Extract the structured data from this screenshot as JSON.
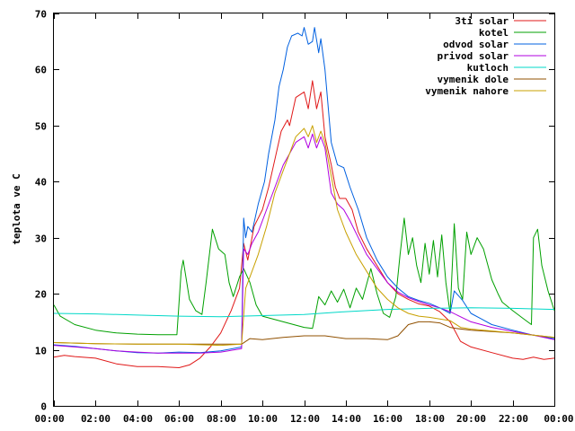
{
  "chart_data": {
    "type": "line",
    "ylabel": "teplota ve C",
    "xlim": [
      0,
      24
    ],
    "ylim": [
      0,
      70
    ],
    "x_ticks": [
      "00:00",
      "02:00",
      "04:00",
      "06:00",
      "08:00",
      "10:00",
      "12:00",
      "14:00",
      "16:00",
      "18:00",
      "20:00",
      "22:00",
      "00:00"
    ],
    "y_ticks": [
      "0",
      "10",
      "20",
      "30",
      "40",
      "50",
      "60",
      "70"
    ],
    "legend_position": "top-right",
    "grid": false,
    "series": [
      {
        "name": "3ti solar",
        "color": "#e01818",
        "points": [
          [
            0,
            8.7
          ],
          [
            0.5,
            9
          ],
          [
            1,
            8.8
          ],
          [
            2,
            8.5
          ],
          [
            3,
            7.5
          ],
          [
            4,
            7.0
          ],
          [
            5,
            7.0
          ],
          [
            6,
            6.8
          ],
          [
            6.5,
            7.3
          ],
          [
            7,
            8.5
          ],
          [
            7.5,
            10.5
          ],
          [
            8,
            13
          ],
          [
            8.5,
            17
          ],
          [
            8.9,
            21
          ],
          [
            9.1,
            29
          ],
          [
            9.3,
            26
          ],
          [
            9.6,
            32
          ],
          [
            10,
            35
          ],
          [
            10.3,
            39
          ],
          [
            10.6,
            44
          ],
          [
            10.9,
            49
          ],
          [
            11.2,
            51
          ],
          [
            11.3,
            50
          ],
          [
            11.6,
            55
          ],
          [
            12,
            56
          ],
          [
            12.2,
            53
          ],
          [
            12.4,
            58
          ],
          [
            12.6,
            53
          ],
          [
            12.8,
            56
          ],
          [
            13.0,
            48
          ],
          [
            13.3,
            43
          ],
          [
            13.5,
            39
          ],
          [
            13.7,
            37
          ],
          [
            14.0,
            37
          ],
          [
            14.3,
            35
          ],
          [
            14.6,
            31
          ],
          [
            15,
            28
          ],
          [
            15.5,
            25
          ],
          [
            16,
            22
          ],
          [
            16.5,
            20
          ],
          [
            17,
            19
          ],
          [
            17.5,
            18.2
          ],
          [
            18,
            17.8
          ],
          [
            18.5,
            16.8
          ],
          [
            19,
            15
          ],
          [
            19.5,
            11.5
          ],
          [
            20,
            10.5
          ],
          [
            21,
            9.5
          ],
          [
            22,
            8.5
          ],
          [
            22.5,
            8.3
          ],
          [
            23,
            8.7
          ],
          [
            23.5,
            8.3
          ],
          [
            24,
            8.5
          ]
        ]
      },
      {
        "name": "kotel",
        "color": "#00a000",
        "points": [
          [
            0,
            18
          ],
          [
            0.3,
            16
          ],
          [
            1,
            14.5
          ],
          [
            2,
            13.5
          ],
          [
            3,
            13
          ],
          [
            4,
            12.8
          ],
          [
            5,
            12.7
          ],
          [
            5.9,
            12.7
          ],
          [
            6.1,
            24
          ],
          [
            6.2,
            26
          ],
          [
            6.5,
            19
          ],
          [
            6.8,
            17
          ],
          [
            7.1,
            16.3
          ],
          [
            7.3,
            22
          ],
          [
            7.6,
            31.5
          ],
          [
            7.9,
            28
          ],
          [
            8.2,
            27
          ],
          [
            8.4,
            22
          ],
          [
            8.6,
            19.5
          ],
          [
            8.9,
            23
          ],
          [
            9.1,
            24.5
          ],
          [
            9.4,
            22
          ],
          [
            9.7,
            18
          ],
          [
            10,
            16
          ],
          [
            11,
            15
          ],
          [
            12,
            14
          ],
          [
            12.4,
            13.8
          ],
          [
            12.5,
            15.6
          ],
          [
            12.7,
            19.5
          ],
          [
            13,
            18
          ],
          [
            13.3,
            20.5
          ],
          [
            13.6,
            18.5
          ],
          [
            13.9,
            20.8
          ],
          [
            14.2,
            17.5
          ],
          [
            14.5,
            21
          ],
          [
            14.8,
            19
          ],
          [
            15.2,
            24.5
          ],
          [
            15.5,
            20
          ],
          [
            15.8,
            16.5
          ],
          [
            16.1,
            15.8
          ],
          [
            16.4,
            19.5
          ],
          [
            16.6,
            27
          ],
          [
            16.8,
            33.5
          ],
          [
            17.0,
            27
          ],
          [
            17.2,
            30
          ],
          [
            17.4,
            25
          ],
          [
            17.6,
            22
          ],
          [
            17.8,
            29
          ],
          [
            18.0,
            23.5
          ],
          [
            18.2,
            29.5
          ],
          [
            18.4,
            23
          ],
          [
            18.6,
            30.5
          ],
          [
            18.8,
            22
          ],
          [
            19.0,
            16.5
          ],
          [
            19.2,
            32.5
          ],
          [
            19.4,
            21
          ],
          [
            19.6,
            19
          ],
          [
            19.8,
            31
          ],
          [
            20.0,
            27
          ],
          [
            20.3,
            30
          ],
          [
            20.6,
            28
          ],
          [
            21,
            22.5
          ],
          [
            21.3,
            20
          ],
          [
            21.5,
            18.5
          ],
          [
            22,
            17
          ],
          [
            22.5,
            15.6
          ],
          [
            22.9,
            14.5
          ],
          [
            23.0,
            30
          ],
          [
            23.2,
            31.5
          ],
          [
            23.4,
            25
          ],
          [
            23.7,
            20.5
          ],
          [
            24,
            17
          ]
        ]
      },
      {
        "name": "odvod solar",
        "color": "#0060e0",
        "points": [
          [
            0,
            10.9
          ],
          [
            1,
            10.6
          ],
          [
            2,
            10.2
          ],
          [
            3,
            9.8
          ],
          [
            4,
            9.5
          ],
          [
            5,
            9.4
          ],
          [
            6,
            9.6
          ],
          [
            7,
            9.5
          ],
          [
            8,
            9.8
          ],
          [
            9,
            10.5
          ],
          [
            9.1,
            33.5
          ],
          [
            9.2,
            30
          ],
          [
            9.3,
            32
          ],
          [
            9.5,
            31
          ],
          [
            9.8,
            36
          ],
          [
            10.1,
            40
          ],
          [
            10.3,
            45
          ],
          [
            10.6,
            51
          ],
          [
            10.8,
            57
          ],
          [
            11.0,
            60
          ],
          [
            11.2,
            64
          ],
          [
            11.4,
            66
          ],
          [
            11.7,
            66.5
          ],
          [
            11.9,
            66
          ],
          [
            12.0,
            67.5
          ],
          [
            12.2,
            64.5
          ],
          [
            12.4,
            65
          ],
          [
            12.5,
            67.5
          ],
          [
            12.7,
            63
          ],
          [
            12.8,
            65.5
          ],
          [
            13.0,
            60
          ],
          [
            13.3,
            47
          ],
          [
            13.6,
            43
          ],
          [
            13.9,
            42.5
          ],
          [
            14.2,
            39
          ],
          [
            14.6,
            35
          ],
          [
            15,
            30
          ],
          [
            15.5,
            26
          ],
          [
            16,
            23
          ],
          [
            16.5,
            21
          ],
          [
            17,
            19.5
          ],
          [
            17.5,
            18.8
          ],
          [
            18,
            18.3
          ],
          [
            18.5,
            17.5
          ],
          [
            19,
            16.5
          ],
          [
            19.2,
            20.5
          ],
          [
            19.6,
            18.8
          ],
          [
            20,
            16.5
          ],
          [
            20.5,
            15.5
          ],
          [
            21,
            14.5
          ],
          [
            22,
            13.5
          ],
          [
            23,
            12.6
          ],
          [
            24,
            12.0
          ]
        ]
      },
      {
        "name": "privod solar",
        "color": "#b000e0",
        "points": [
          [
            0,
            10.8
          ],
          [
            1,
            10.5
          ],
          [
            2,
            10.2
          ],
          [
            3,
            9.8
          ],
          [
            4,
            9.6
          ],
          [
            5,
            9.4
          ],
          [
            6,
            9.4
          ],
          [
            7,
            9.4
          ],
          [
            8,
            9.6
          ],
          [
            9,
            10.2
          ],
          [
            9.1,
            28
          ],
          [
            9.3,
            27
          ],
          [
            9.5,
            29
          ],
          [
            9.8,
            31
          ],
          [
            10.2,
            35
          ],
          [
            10.6,
            39
          ],
          [
            11.0,
            43
          ],
          [
            11.3,
            45
          ],
          [
            11.6,
            47
          ],
          [
            12.0,
            48
          ],
          [
            12.2,
            46
          ],
          [
            12.4,
            48.5
          ],
          [
            12.6,
            46
          ],
          [
            12.8,
            48
          ],
          [
            13.0,
            46
          ],
          [
            13.3,
            38
          ],
          [
            13.6,
            36
          ],
          [
            13.9,
            35
          ],
          [
            14.2,
            33
          ],
          [
            14.6,
            30
          ],
          [
            15,
            27
          ],
          [
            15.5,
            24.5
          ],
          [
            16,
            22
          ],
          [
            16.5,
            20.3
          ],
          [
            17,
            19.3
          ],
          [
            17.5,
            18.6
          ],
          [
            18,
            18
          ],
          [
            18.5,
            17.5
          ],
          [
            19,
            16.8
          ],
          [
            20,
            15
          ],
          [
            21,
            14
          ],
          [
            22,
            13.3
          ],
          [
            23,
            12.6
          ],
          [
            24,
            11.8
          ]
        ]
      },
      {
        "name": "kutloch",
        "color": "#00d8c8",
        "points": [
          [
            0,
            16.5
          ],
          [
            2,
            16.4
          ],
          [
            4,
            16.2
          ],
          [
            6,
            16.0
          ],
          [
            8,
            15.9
          ],
          [
            10,
            16.1
          ],
          [
            12,
            16.3
          ],
          [
            14,
            16.8
          ],
          [
            16,
            17.2
          ],
          [
            18,
            17.4
          ],
          [
            20,
            17.5
          ],
          [
            22,
            17.4
          ],
          [
            24,
            17.2
          ]
        ]
      },
      {
        "name": "vymenik dole",
        "color": "#905000",
        "points": [
          [
            0,
            11.3
          ],
          [
            2,
            11.1
          ],
          [
            4,
            11.0
          ],
          [
            6,
            11.0
          ],
          [
            8,
            11.0
          ],
          [
            9,
            11.0
          ],
          [
            9.4,
            12
          ],
          [
            10,
            11.8
          ],
          [
            11,
            12.2
          ],
          [
            12,
            12.5
          ],
          [
            13,
            12.5
          ],
          [
            14,
            12.0
          ],
          [
            15,
            12.0
          ],
          [
            16,
            11.8
          ],
          [
            16.5,
            12.5
          ],
          [
            17,
            14.5
          ],
          [
            17.5,
            15.0
          ],
          [
            18,
            15.0
          ],
          [
            18.5,
            14.8
          ],
          [
            19,
            14.0
          ],
          [
            19.3,
            13.8
          ],
          [
            20,
            13.5
          ],
          [
            22,
            13.0
          ],
          [
            24,
            12.2
          ]
        ]
      },
      {
        "name": "vymenik nahore",
        "color": "#c8a000",
        "points": [
          [
            0,
            11.3
          ],
          [
            2,
            11.1
          ],
          [
            4,
            11.0
          ],
          [
            6,
            11.0
          ],
          [
            8,
            10.8
          ],
          [
            9,
            11.0
          ],
          [
            9.2,
            21
          ],
          [
            9.5,
            24
          ],
          [
            9.8,
            27
          ],
          [
            10.2,
            32
          ],
          [
            10.6,
            38
          ],
          [
            11.0,
            42
          ],
          [
            11.3,
            45
          ],
          [
            11.6,
            48
          ],
          [
            12.0,
            49.5
          ],
          [
            12.2,
            48
          ],
          [
            12.4,
            50
          ],
          [
            12.6,
            47
          ],
          [
            12.8,
            49
          ],
          [
            13.0,
            47
          ],
          [
            13.3,
            41
          ],
          [
            13.6,
            35
          ],
          [
            14,
            31
          ],
          [
            14.5,
            27
          ],
          [
            15,
            24
          ],
          [
            15.5,
            21
          ],
          [
            16,
            19
          ],
          [
            16.5,
            17.5
          ],
          [
            17,
            16.5
          ],
          [
            17.5,
            16.0
          ],
          [
            18,
            15.8
          ],
          [
            18.5,
            15.5
          ],
          [
            19,
            15.2
          ],
          [
            19.5,
            14.0
          ],
          [
            20,
            13.7
          ],
          [
            22,
            13.0
          ],
          [
            24,
            12.2
          ]
        ]
      }
    ]
  }
}
